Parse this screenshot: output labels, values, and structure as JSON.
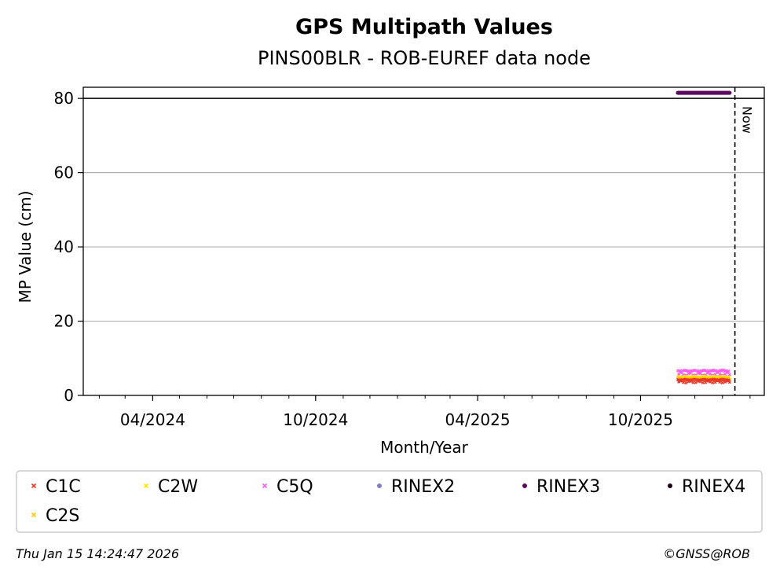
{
  "chart_data": {
    "type": "scatter",
    "title": "GPS Multipath Values",
    "subtitle": "PINS00BLR - ROB-EUREF data node",
    "xlabel": "Month/Year",
    "ylabel": "MP Value (cm)",
    "ylim": [
      0,
      83
    ],
    "xlim": [
      "2024-01-14",
      "2026-02-17"
    ],
    "y_ticks": [
      0,
      20,
      40,
      60,
      80
    ],
    "x_ticks": [
      {
        "date": "2024-04-01",
        "label": "04/2024"
      },
      {
        "date": "2024-10-01",
        "label": "10/2024"
      },
      {
        "date": "2025-04-01",
        "label": "04/2025"
      },
      {
        "date": "2025-10-01",
        "label": "10/2025"
      }
    ],
    "grid": "horizontal",
    "threshold_line": 80,
    "now_marker": {
      "date": "2026-01-15",
      "label": "Now"
    },
    "series": [
      {
        "name": "C1C",
        "marker": "x",
        "color": "#e8372c",
        "start": "2025-11-12",
        "end": "2026-01-09",
        "mean": 4.0,
        "spread": 0.4
      },
      {
        "name": "C2W",
        "marker": "x",
        "color": "#ffe500",
        "start": "2025-11-12",
        "end": "2026-01-09",
        "mean": 4.8,
        "spread": 0.4
      },
      {
        "name": "C5Q",
        "marker": "x",
        "color": "#ff5cf4",
        "start": "2025-11-12",
        "end": "2026-01-09",
        "mean": 6.3,
        "spread": 0.6
      },
      {
        "name": "RINEX2",
        "marker": "dot",
        "color": "#8080c0",
        "start": null,
        "end": null,
        "mean": null,
        "spread": 0
      },
      {
        "name": "RINEX3",
        "marker": "dot",
        "color": "#5c0a5c",
        "start": "2025-11-12",
        "end": "2026-01-09",
        "mean": 81.5,
        "spread": 0
      },
      {
        "name": "RINEX4",
        "marker": "dot",
        "color": "#1a001a",
        "start": null,
        "end": null,
        "mean": null,
        "spread": 0
      },
      {
        "name": "C2S",
        "marker": "x",
        "color": "#ffcc00",
        "start": "2025-11-12",
        "end": "2026-01-09",
        "mean": 4.5,
        "spread": 0.3
      }
    ]
  },
  "footer": {
    "timestamp": "Thu Jan 15 14:24:47 2026",
    "copyright": "©GNSS@ROB"
  }
}
